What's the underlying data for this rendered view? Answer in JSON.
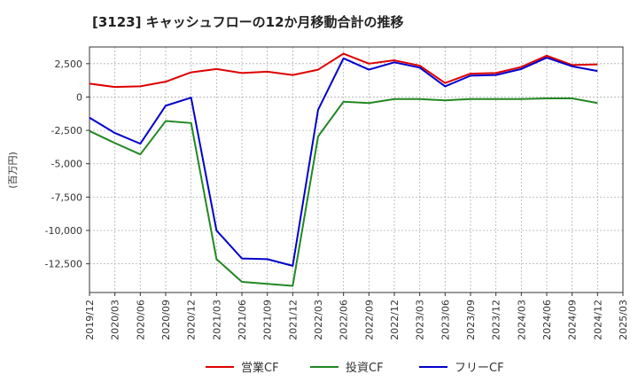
{
  "chart_data": {
    "type": "line",
    "title": "[3123]  キャッシュフローの12か月移動合計の推移",
    "ylabel": "(百万円)",
    "xlabel": "",
    "ylim": [
      -14650,
      3750
    ],
    "yticks": [
      2500,
      0,
      -2500,
      -5000,
      -7500,
      -10000,
      -12500
    ],
    "ytick_labels": [
      "2,500",
      "0",
      "-2,500",
      "-5,000",
      "-7,500",
      "-10,000",
      "-12,500"
    ],
    "categories": [
      "2019/12",
      "2020/03",
      "2020/06",
      "2020/09",
      "2020/12",
      "2021/03",
      "2021/06",
      "2021/09",
      "2021/12",
      "2022/03",
      "2022/06",
      "2022/09",
      "2022/12",
      "2023/03",
      "2023/06",
      "2023/09",
      "2023/12",
      "2024/03",
      "2024/06",
      "2024/09",
      "2024/12",
      "2025/03"
    ],
    "grid": true,
    "legend_position": "bottom-center",
    "series": [
      {
        "name": "営業CF",
        "color": "#dd0000",
        "values": [
          1000,
          750,
          800,
          1150,
          1850,
          2100,
          1800,
          1900,
          1650,
          2050,
          3250,
          2500,
          2750,
          2350,
          1050,
          1750,
          1800,
          2250,
          3100,
          2400,
          2450,
          null
        ]
      },
      {
        "name": "投資CF",
        "color": "#228822",
        "values": [
          -2550,
          -3450,
          -4300,
          -1800,
          -1950,
          -12150,
          -13850,
          -14000,
          -14150,
          -2950,
          -350,
          -450,
          -150,
          -150,
          -250,
          -150,
          -150,
          -150,
          -100,
          -100,
          -450,
          null
        ]
      },
      {
        "name": "フリーCF",
        "color": "#0000cc",
        "values": [
          -1550,
          -2700,
          -3500,
          -650,
          -50,
          -10000,
          -12100,
          -12150,
          -12650,
          -950,
          2900,
          2050,
          2600,
          2200,
          800,
          1600,
          1650,
          2100,
          2950,
          2300,
          1950,
          null
        ]
      }
    ]
  }
}
